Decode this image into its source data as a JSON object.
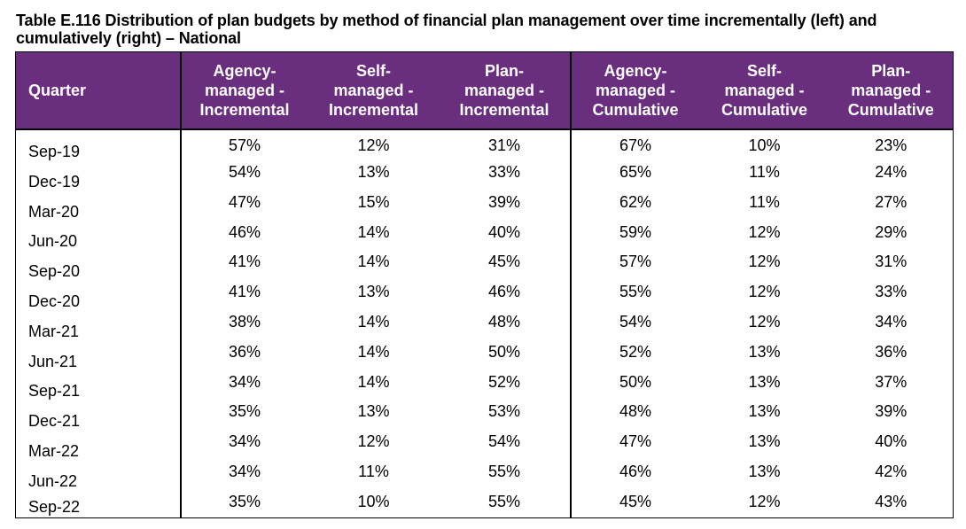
{
  "caption": {
    "line1": "Table E.116 Distribution of plan budgets by method of financial plan management over time incrementally (left) and",
    "line2": "cumulatively (right) – National"
  },
  "table": {
    "headers": [
      [
        "Quarter"
      ],
      [
        "Agency-",
        "managed -",
        "Incremental"
      ],
      [
        "Self-",
        "managed -",
        "Incremental"
      ],
      [
        "Plan-",
        "managed -",
        "Incremental"
      ],
      [
        "Agency-",
        "managed -",
        "Cumulative"
      ],
      [
        "Self-",
        "managed -",
        "Cumulative"
      ],
      [
        "Plan-",
        "managed -",
        "Cumulative"
      ]
    ],
    "rows": [
      [
        "Sep-19",
        "57%",
        "12%",
        "31%",
        "67%",
        "10%",
        "23%"
      ],
      [
        "Dec-19",
        "54%",
        "13%",
        "33%",
        "65%",
        "11%",
        "24%"
      ],
      [
        "Mar-20",
        "47%",
        "15%",
        "39%",
        "62%",
        "11%",
        "27%"
      ],
      [
        "Jun-20",
        "46%",
        "14%",
        "40%",
        "59%",
        "12%",
        "29%"
      ],
      [
        "Sep-20",
        "41%",
        "14%",
        "45%",
        "57%",
        "12%",
        "31%"
      ],
      [
        "Dec-20",
        "41%",
        "13%",
        "46%",
        "55%",
        "12%",
        "33%"
      ],
      [
        "Mar-21",
        "38%",
        "14%",
        "48%",
        "54%",
        "12%",
        "34%"
      ],
      [
        "Jun-21",
        "36%",
        "14%",
        "50%",
        "52%",
        "13%",
        "36%"
      ],
      [
        "Sep-21",
        "34%",
        "14%",
        "52%",
        "50%",
        "13%",
        "37%"
      ],
      [
        "Dec-21",
        "35%",
        "13%",
        "53%",
        "48%",
        "13%",
        "39%"
      ],
      [
        "Mar-22",
        "34%",
        "12%",
        "54%",
        "47%",
        "13%",
        "40%"
      ],
      [
        "Jun-22",
        "34%",
        "11%",
        "55%",
        "46%",
        "13%",
        "42%"
      ],
      [
        "Sep-22",
        "35%",
        "10%",
        "55%",
        "45%",
        "12%",
        "43%"
      ]
    ]
  },
  "colors": {
    "header_background": "#6a2e7f",
    "header_text": "#ffffff",
    "rule": "#000000"
  }
}
